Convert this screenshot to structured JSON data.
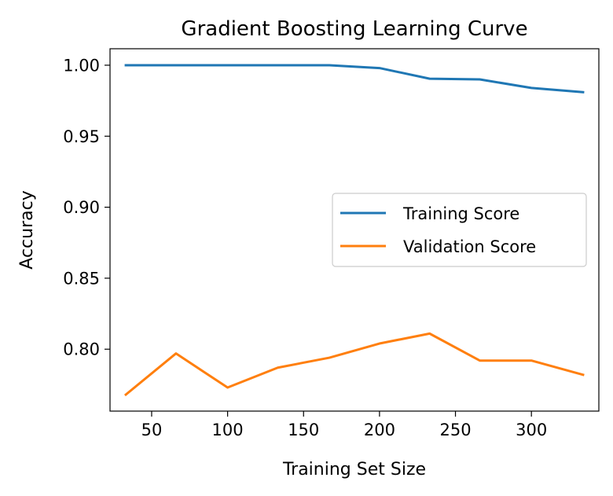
{
  "chart_data": {
    "type": "line",
    "title": "Gradient Boosting Learning Curve",
    "xlabel": "Training Set Size",
    "ylabel": "Accuracy",
    "x": [
      33,
      66,
      100,
      133,
      167,
      200,
      233,
      266,
      300,
      334
    ],
    "series": [
      {
        "name": "Training Score",
        "color": "#1f77b4",
        "values": [
          1.0,
          1.0,
          1.0,
          1.0,
          1.0,
          0.998,
          0.9905,
          0.99,
          0.984,
          0.981
        ]
      },
      {
        "name": "Validation Score",
        "color": "#ff7f0e",
        "values": [
          0.768,
          0.797,
          0.773,
          0.787,
          0.794,
          0.804,
          0.811,
          0.792,
          0.792,
          0.782
        ]
      }
    ],
    "xlim": [
      22.6,
      344.4
    ],
    "ylim": [
      0.7564,
      1.0116
    ],
    "xticks": [
      50,
      100,
      150,
      200,
      250,
      300
    ],
    "xtick_labels": [
      "50",
      "100",
      "150",
      "200",
      "250",
      "300"
    ],
    "yticks": [
      0.8,
      0.85,
      0.9,
      0.95,
      1.0
    ],
    "ytick_labels": [
      "0.80",
      "0.85",
      "0.90",
      "0.95",
      "1.00"
    ],
    "grid": false,
    "legend_position": "center-right"
  }
}
